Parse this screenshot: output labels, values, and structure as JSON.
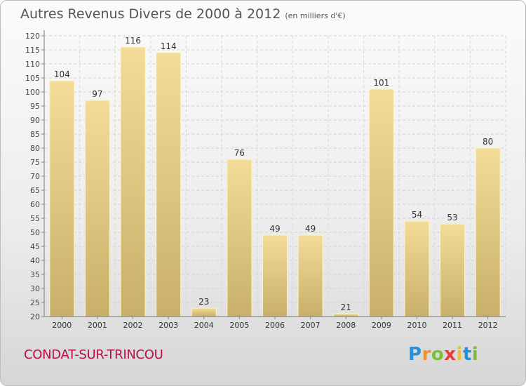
{
  "chart_data": {
    "type": "bar",
    "title": "Autres Revenus Divers de 2000 à 2012",
    "subtitle": "(en milliers d'€)",
    "categories": [
      "2000",
      "2001",
      "2002",
      "2003",
      "2004",
      "2005",
      "2006",
      "2007",
      "2008",
      "2009",
      "2010",
      "2011",
      "2012"
    ],
    "values": [
      104,
      97,
      116,
      114,
      23,
      76,
      49,
      49,
      21,
      101,
      54,
      53,
      80
    ],
    "ylim": [
      20,
      120
    ],
    "yticks": [
      20,
      25,
      30,
      35,
      40,
      45,
      50,
      55,
      60,
      65,
      70,
      75,
      80,
      85,
      90,
      95,
      100,
      105,
      110,
      115,
      120
    ],
    "grid": true,
    "bar_color": "#e9cf86"
  },
  "commune": "CONDAT-SUR-TRINCOU",
  "brand": {
    "letters": [
      "P",
      "r",
      "o",
      "x",
      "i",
      "t",
      "i"
    ],
    "colors": [
      "#2a8fd6",
      "#f0932b",
      "#7cbf3a",
      "#e63c3c",
      "#f0c030",
      "#2a8fd6",
      "#7cbf3a"
    ]
  }
}
